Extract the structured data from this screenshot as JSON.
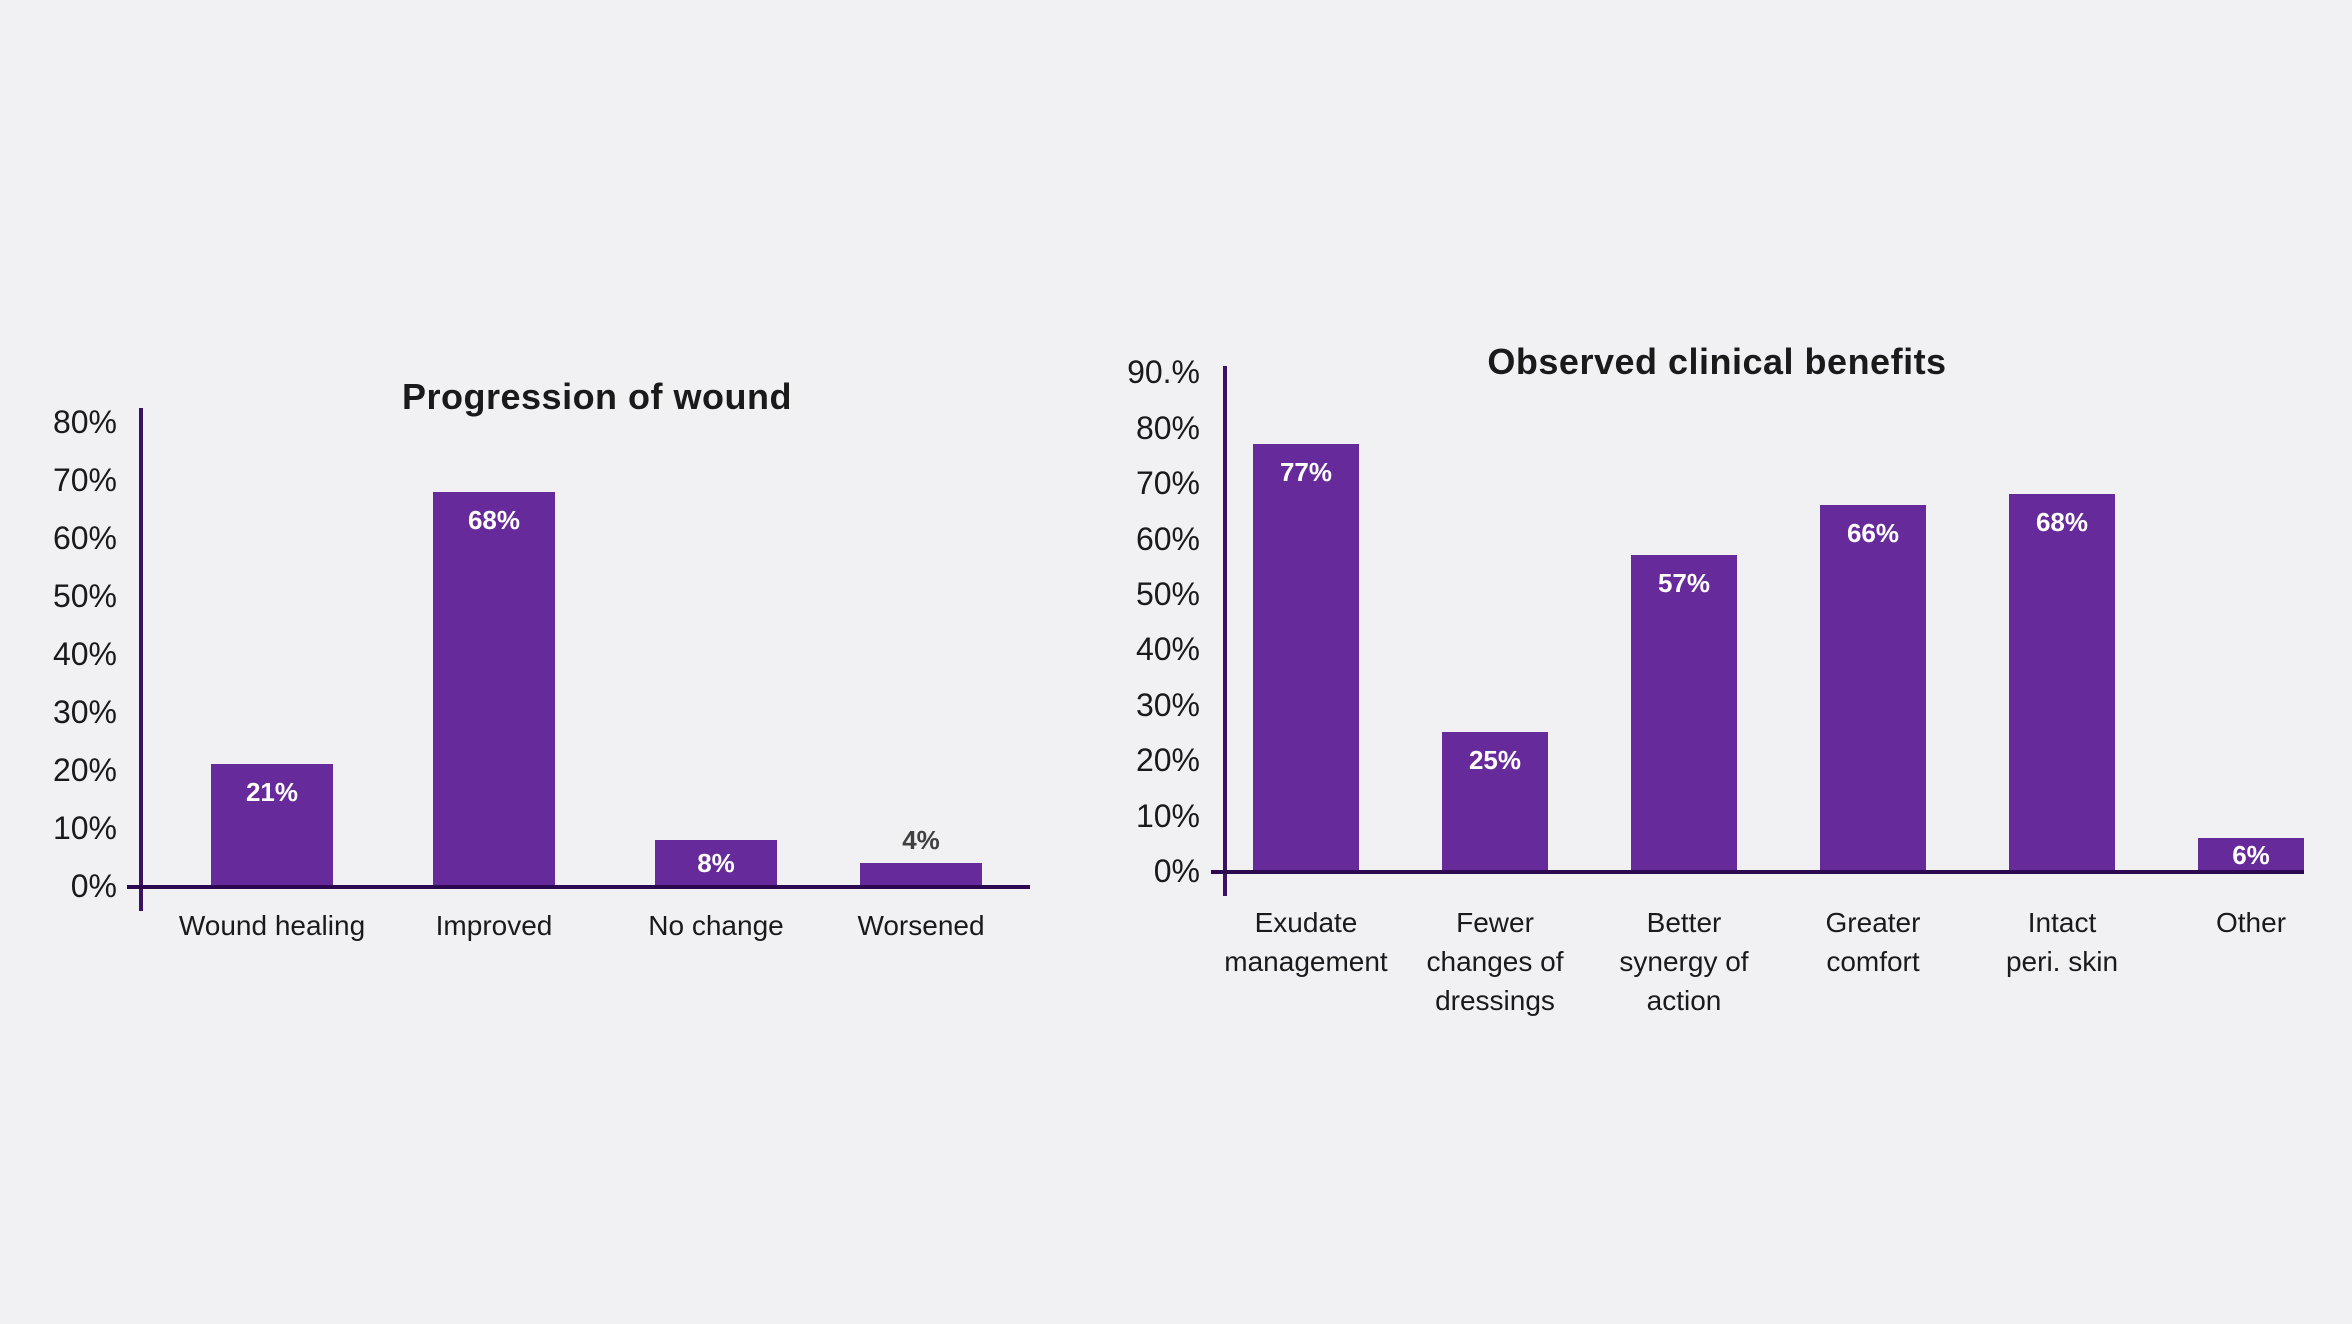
{
  "background_color": "#f1f1f3",
  "accent_color": "#662a9b",
  "axis_color": "#3a1260",
  "baseline_color": "#2b0850",
  "text_color": "#1a1a1a",
  "chart_data": [
    {
      "type": "bar",
      "title": "Progression of wound",
      "categories": [
        "Wound healing",
        "Improved",
        "No change",
        "Worsened"
      ],
      "values": [
        21,
        68,
        8,
        4
      ],
      "value_labels": [
        "21%",
        "68%",
        "8%",
        "4%"
      ],
      "tick_labels": [
        "0%",
        "10%",
        "20%",
        "30%",
        "40%",
        "50%",
        "60%",
        "70%",
        "80%"
      ],
      "tick_step": 10,
      "ylim": [
        0,
        80
      ],
      "xlabel": "",
      "ylabel": "",
      "grid": false,
      "legend_position": "none",
      "bar_color": "#662a9b",
      "value_label_color_inside": "#ffffff",
      "value_label_color_outside": "#3f3f3f"
    },
    {
      "type": "bar",
      "title": "Observed clinical benefits",
      "categories": [
        "Exudate\nmanagement",
        "Fewer\nchanges of\ndressings",
        "Better\nsynergy of\naction",
        "Greater\ncomfort",
        "Intact\nperi. skin",
        "Other"
      ],
      "values": [
        77,
        25,
        57,
        66,
        68,
        6
      ],
      "value_labels": [
        "77%",
        "25%",
        "57%",
        "66%",
        "68%",
        "6%"
      ],
      "tick_labels": [
        "0%",
        "10%",
        "20%",
        "30%",
        "40%",
        "50%",
        "60%",
        "70%",
        "80%",
        "90.%"
      ],
      "tick_step": 10,
      "ylim": [
        0,
        90
      ],
      "xlabel": "",
      "ylabel": "",
      "grid": false,
      "legend_position": "none",
      "bar_color": "#662a9b",
      "value_label_color_inside": "#ffffff",
      "value_label_color_outside": "#3f3f3f"
    }
  ]
}
